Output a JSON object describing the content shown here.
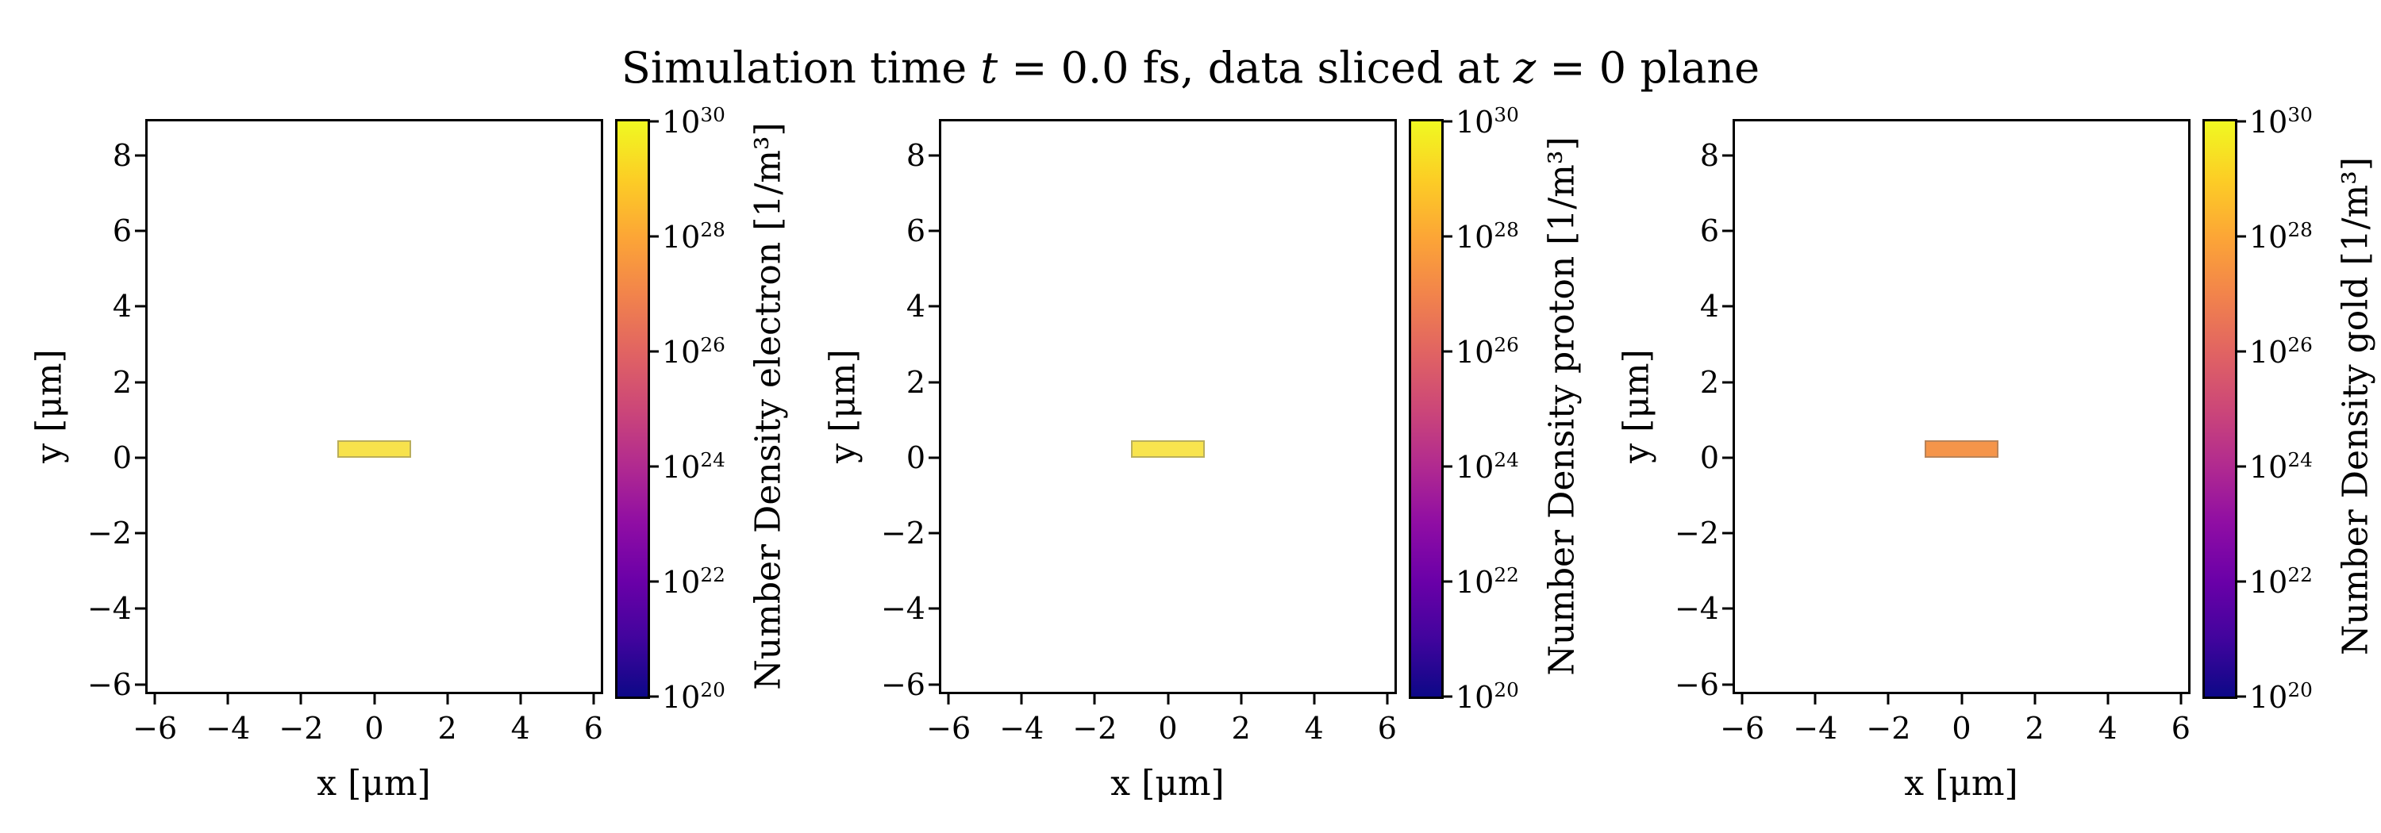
{
  "figure": {
    "background": "#ffffff",
    "title_text": "Simulation time t = 0.0 fs, data sliced at z = 0 plane",
    "title_segments": [
      {
        "text": "Simulation time ",
        "italic": false
      },
      {
        "text": "t",
        "italic": true
      },
      {
        "text": " = 0.0 fs, data sliced at ",
        "italic": false
      },
      {
        "text": "z",
        "italic": true
      },
      {
        "text": " = 0 plane",
        "italic": false
      }
    ]
  },
  "colormap": {
    "name": "plasma",
    "stops_low_to_high": [
      "#0d0887",
      "#41049d",
      "#6a00a8",
      "#8f0da4",
      "#b12a90",
      "#cc4778",
      "#e16462",
      "#f2844b",
      "#fca636",
      "#fcce25",
      "#f0f921"
    ]
  },
  "chart_data": [
    {
      "type": "heatmap",
      "species": "electron",
      "xlabel": "x [μm]",
      "ylabel": "y [μm]",
      "xlim": [
        -6.2,
        6.2
      ],
      "ylim": [
        -6.2,
        8.9
      ],
      "xticks": [
        -6,
        -4,
        -2,
        0,
        2,
        4,
        6
      ],
      "yticks": [
        -6,
        -4,
        -2,
        0,
        2,
        4,
        6,
        8
      ],
      "colorbar": {
        "label": "Number Density electron [1/m³]",
        "scale": "log",
        "tick_exponents": [
          20,
          22,
          24,
          26,
          28,
          30
        ]
      },
      "target_bar": {
        "x": [
          -1.0,
          1.0
        ],
        "y": [
          0.0,
          0.45
        ],
        "color": "#f7e24c",
        "edge_color": "rgba(110,110,110,0.45)"
      }
    },
    {
      "type": "heatmap",
      "species": "proton",
      "xlabel": "x [μm]",
      "ylabel": "y [μm]",
      "xlim": [
        -6.2,
        6.2
      ],
      "ylim": [
        -6.2,
        8.9
      ],
      "xticks": [
        -6,
        -4,
        -2,
        0,
        2,
        4,
        6
      ],
      "yticks": [
        -6,
        -4,
        -2,
        0,
        2,
        4,
        6,
        8
      ],
      "colorbar": {
        "label": "Number Density proton [1/m³]",
        "scale": "log",
        "tick_exponents": [
          20,
          22,
          24,
          26,
          28,
          30
        ]
      },
      "target_bar": {
        "x": [
          -1.0,
          1.0
        ],
        "y": [
          0.0,
          0.45
        ],
        "color": "#f8e44e",
        "edge_color": "rgba(110,110,110,0.45)"
      }
    },
    {
      "type": "heatmap",
      "species": "gold",
      "xlabel": "x [μm]",
      "ylabel": "y [μm]",
      "xlim": [
        -6.2,
        6.2
      ],
      "ylim": [
        -6.2,
        8.9
      ],
      "xticks": [
        -6,
        -4,
        -2,
        0,
        2,
        4,
        6
      ],
      "yticks": [
        -6,
        -4,
        -2,
        0,
        2,
        4,
        6,
        8
      ],
      "colorbar": {
        "label": "Number Density gold [1/m³]",
        "scale": "log",
        "tick_exponents": [
          20,
          22,
          24,
          26,
          28,
          30
        ]
      },
      "target_bar": {
        "x": [
          -1.0,
          1.0
        ],
        "y": [
          0.0,
          0.45
        ],
        "color": "#f5954a",
        "edge_color": "rgba(110,110,110,0.45)"
      }
    }
  ]
}
